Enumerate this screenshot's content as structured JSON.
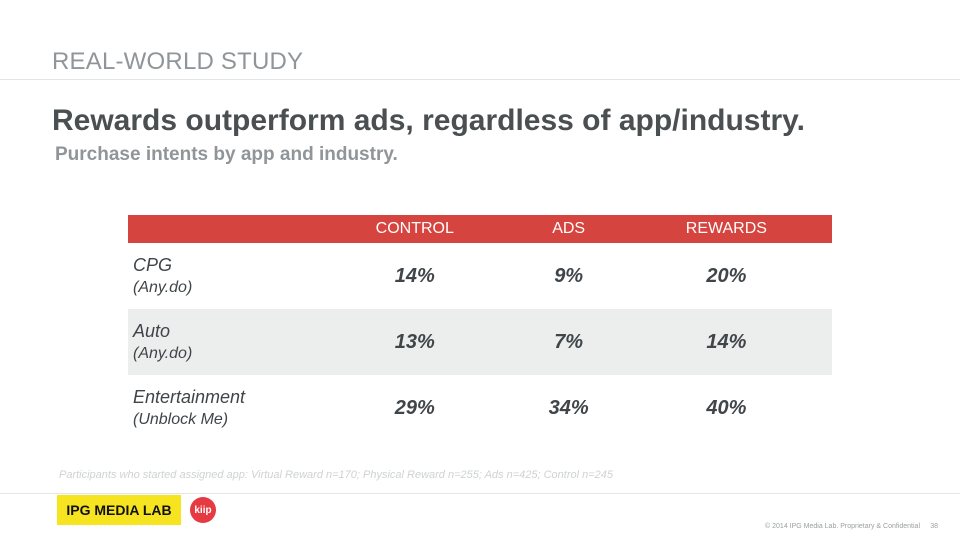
{
  "header": {
    "kicker": "REAL-WORLD STUDY",
    "title": "Rewards outperform ads, regardless of app/industry.",
    "subtitle": "Purchase intents by app and industry."
  },
  "table": {
    "columns": [
      "",
      "CONTROL",
      "ADS",
      "REWARDS"
    ],
    "rows": [
      {
        "category": "CPG",
        "app": "(Any.do)",
        "control": "14%",
        "ads": "9%",
        "rewards": "20%"
      },
      {
        "category": "Auto",
        "app": "(Any.do)",
        "control": "13%",
        "ads": "7%",
        "rewards": "14%"
      },
      {
        "category": "Entertainment",
        "app": "(Unblock Me)",
        "control": "29%",
        "ads": "34%",
        "rewards": "40%"
      }
    ]
  },
  "footnote": "Participants who started assigned app: Virtual Reward n=170; Physical Reward n=255; Ads n=425; Control n=245",
  "footer": {
    "ipg_logo": "IPG MEDIA LAB",
    "kiip_logo": "kiip",
    "copyright": "© 2014 IPG Media Lab. Proprietary & Confidential",
    "page_number": "38"
  },
  "colors": {
    "accent_red": "#d5443e",
    "reward_red": "#cf4a44",
    "ipg_yellow": "#f7e421",
    "kiip_red": "#e63a43"
  }
}
